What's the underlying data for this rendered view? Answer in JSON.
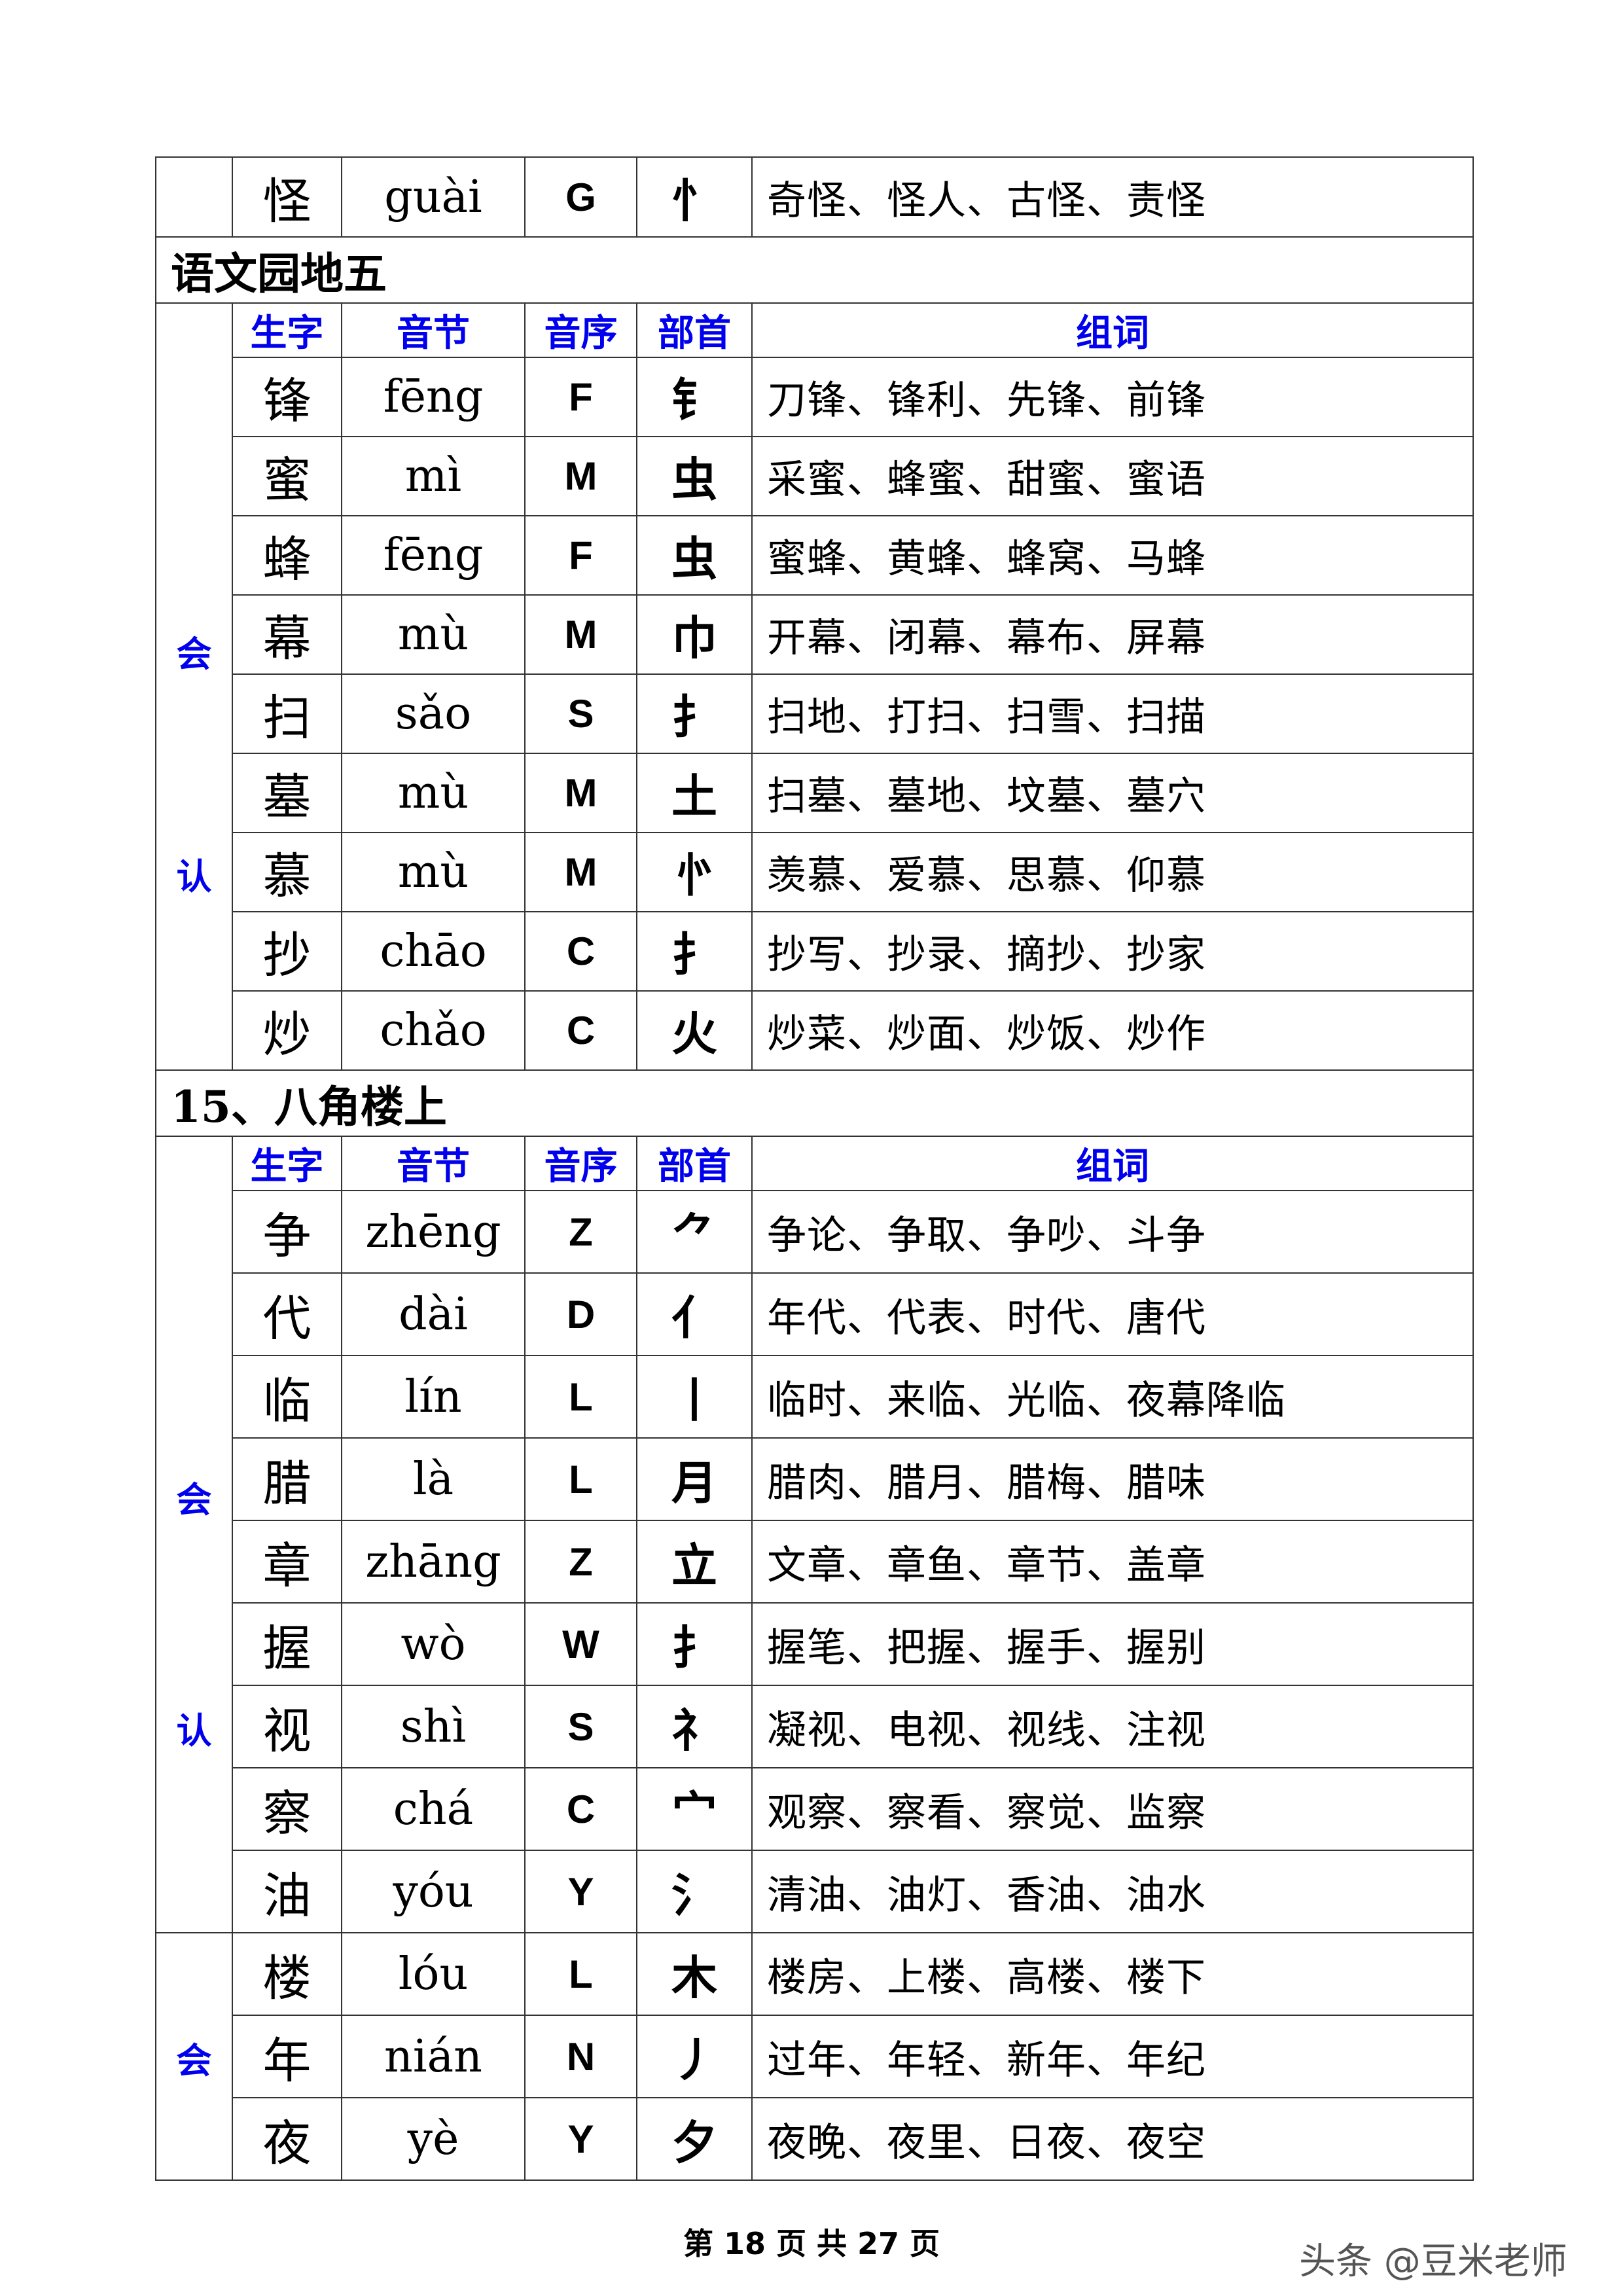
{
  "top_row": {
    "char": "怪",
    "pinyin": "guài",
    "order": "G",
    "radical": "忄",
    "words": "奇怪、怪人、古怪、责怪"
  },
  "headers": {
    "char": "生字",
    "pinyin": "音节",
    "order": "音序",
    "radical": "部首",
    "words": "组词"
  },
  "sections": [
    {
      "title": "语文园地五",
      "groups": [
        {
          "labels": [
            "会",
            "认"
          ],
          "rows": [
            {
              "char": "锋",
              "pinyin": "fēng",
              "order": "F",
              "radical": "钅",
              "words": "刀锋、锋利、先锋、前锋"
            },
            {
              "char": "蜜",
              "pinyin": "mì",
              "order": "M",
              "radical": "虫",
              "words": "采蜜、蜂蜜、甜蜜、蜜语"
            },
            {
              "char": "蜂",
              "pinyin": "fēng",
              "order": "F",
              "radical": "虫",
              "words": "蜜蜂、黄蜂、蜂窝、马蜂"
            },
            {
              "char": "幕",
              "pinyin": "mù",
              "order": "M",
              "radical": "巾",
              "words": "开幕、闭幕、幕布、屏幕"
            },
            {
              "char": "扫",
              "pinyin": "sǎo",
              "order": "S",
              "radical": "扌",
              "words": "扫地、打扫、扫雪、扫描"
            },
            {
              "char": "墓",
              "pinyin": "mù",
              "order": "M",
              "radical": "土",
              "words": "扫墓、墓地、坟墓、墓穴"
            },
            {
              "char": "慕",
              "pinyin": "mù",
              "order": "M",
              "radical": "㣺",
              "words": "羡慕、爱慕、思慕、仰慕"
            },
            {
              "char": "抄",
              "pinyin": "chāo",
              "order": "C",
              "radical": "扌",
              "words": "抄写、抄录、摘抄、抄家"
            },
            {
              "char": "炒",
              "pinyin": "chǎo",
              "order": "C",
              "radical": "火",
              "words": "炒菜、炒面、炒饭、炒作"
            }
          ]
        }
      ]
    },
    {
      "title": "15、八角楼上",
      "groups": [
        {
          "labels": [
            "会",
            "认"
          ],
          "rows": [
            {
              "char": "争",
              "pinyin": "zhēng",
              "order": "Z",
              "radical": "⺈",
              "words": "争论、争取、争吵、斗争"
            },
            {
              "char": "代",
              "pinyin": "dài",
              "order": "D",
              "radical": "亻",
              "words": "年代、代表、时代、唐代"
            },
            {
              "char": "临",
              "pinyin": "lín",
              "order": "L",
              "radical": "丨",
              "words": "临时、来临、光临、夜幕降临"
            },
            {
              "char": "腊",
              "pinyin": "là",
              "order": "L",
              "radical": "月",
              "words": "腊肉、腊月、腊梅、腊味"
            },
            {
              "char": "章",
              "pinyin": "zhāng",
              "order": "Z",
              "radical": "立",
              "words": "文章、章鱼、章节、盖章"
            },
            {
              "char": "握",
              "pinyin": "wò",
              "order": "W",
              "radical": "扌",
              "words": "握笔、把握、握手、握别"
            },
            {
              "char": "视",
              "pinyin": "shì",
              "order": "S",
              "radical": "礻",
              "words": "凝视、电视、视线、注视"
            },
            {
              "char": "察",
              "pinyin": "chá",
              "order": "C",
              "radical": "宀",
              "words": "观察、察看、察觉、监察"
            },
            {
              "char": "油",
              "pinyin": "yóu",
              "order": "Y",
              "radical": "氵",
              "words": "清油、油灯、香油、油水"
            }
          ]
        },
        {
          "labels": [
            "会"
          ],
          "rows": [
            {
              "char": "楼",
              "pinyin": "lóu",
              "order": "L",
              "radical": "木",
              "words": "楼房、上楼、高楼、楼下"
            },
            {
              "char": "年",
              "pinyin": "nián",
              "order": "N",
              "radical": "丿",
              "words": "过年、年轻、新年、年纪"
            },
            {
              "char": "夜",
              "pinyin": "yè",
              "order": "Y",
              "radical": "夕",
              "words": "夜晚、夜里、日夜、夜空"
            }
          ]
        }
      ]
    }
  ],
  "footer": "第 18 页 共 27 页",
  "watermark": "头条 @豆米老师",
  "colors": {
    "header": "#0000ee",
    "border": "#333333"
  }
}
